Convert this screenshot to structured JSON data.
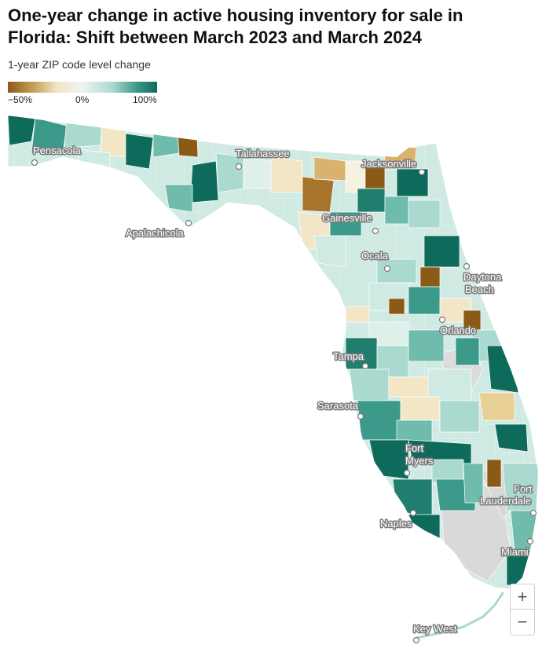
{
  "title": "One-year change in active housing inventory for sale in Florida: Shift between March 2023 and March 2024",
  "subtitle": "1-year ZIP code level change",
  "legend": {
    "labels": [
      "−50%",
      "0%",
      "100%"
    ],
    "colors": [
      "#8a5a16",
      "#c9a25c",
      "#f2e6c6",
      "#eef4f1",
      "#aad9cf",
      "#3c9a8a",
      "#0e6b5c"
    ]
  },
  "cities": {
    "pensacola": "Pensacola",
    "tallahassee": "Tallahassee",
    "jacksonville": "Jacksonville",
    "apalachicola": "Apalachicola",
    "gainesville": "Gainesville",
    "ocala": "Ocala",
    "daytona1": "Daytona",
    "daytona2": "Beach",
    "orlando": "Orlando",
    "tampa": "Tampa",
    "sarasota": "Sarasota",
    "fortmyers1": "Fort",
    "fortmyers2": "Myers",
    "fortlaud1": "Fort",
    "fortlaud2": "Lauderdale",
    "naples": "Naples",
    "miami": "Miami",
    "keywest": "Key West"
  },
  "zoom": {
    "in": "+",
    "out": "−"
  }
}
